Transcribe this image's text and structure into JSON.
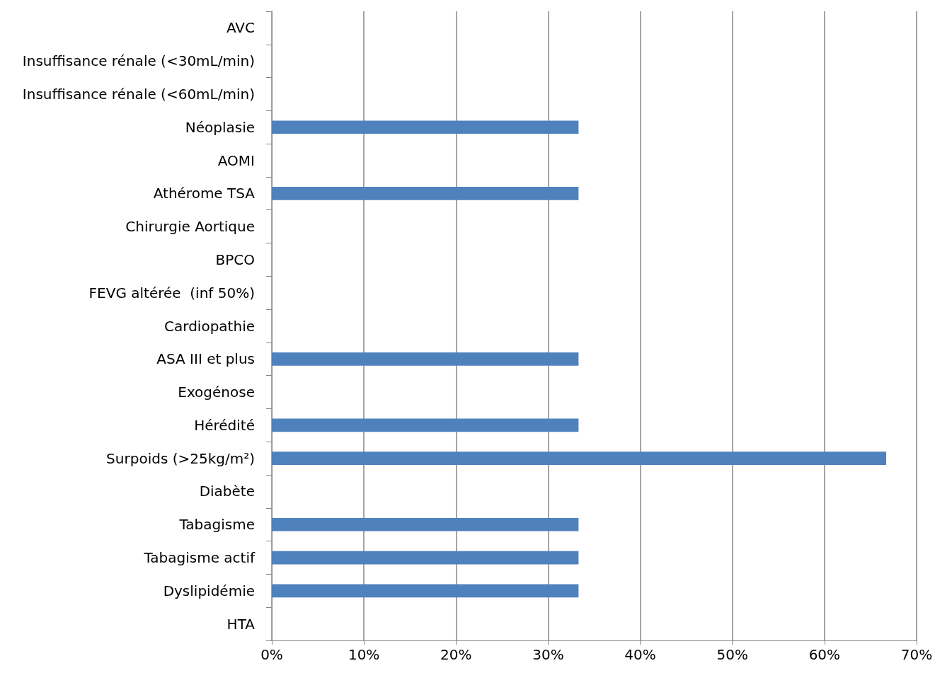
{
  "chart_data": {
    "type": "bar",
    "orientation": "horizontal",
    "categories": [
      "AVC",
      "Insuffisance rénale (<30mL/min)",
      "Insuffisance rénale (<60mL/min)",
      "Néoplasie",
      "AOMI",
      "Athérome TSA",
      "Chirurgie Aortique",
      "BPCO",
      "FEVG altérée  (inf 50%)",
      "Cardiopathie",
      "ASA III et plus",
      "Exogénose",
      "Hérédité",
      "Surpoids (>25kg/m²)",
      "Diabète",
      "Tabagisme",
      "Tabagisme actif",
      "Dyslipidémie",
      "HTA"
    ],
    "values": [
      0,
      0,
      0,
      33.3,
      0,
      33.3,
      0,
      0,
      0,
      0,
      33.3,
      0,
      33.3,
      66.7,
      0,
      33.3,
      33.3,
      33.3,
      0
    ],
    "color": "#4f81bd",
    "xlim": [
      0,
      70
    ],
    "xticks": [
      {
        "value": 0,
        "label": "0%"
      },
      {
        "value": 10,
        "label": "10%"
      },
      {
        "value": 20,
        "label": "20%"
      },
      {
        "value": 30,
        "label": "30%"
      },
      {
        "value": 40,
        "label": "40%"
      },
      {
        "value": 50,
        "label": "50%"
      },
      {
        "value": 60,
        "label": "60%"
      },
      {
        "value": 70,
        "label": "70%"
      }
    ],
    "grid": "x"
  }
}
